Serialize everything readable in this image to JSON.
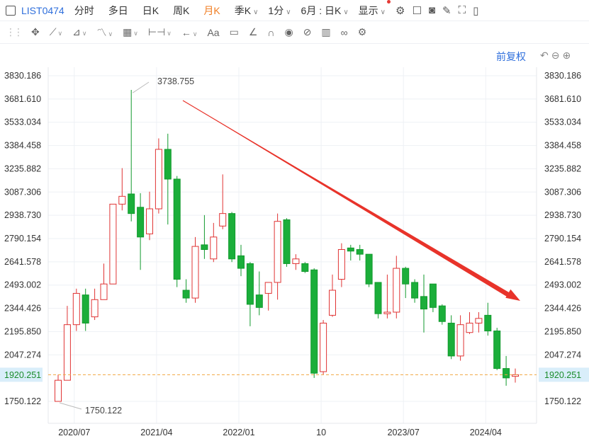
{
  "toolbar": {
    "symbol": "LIST0474",
    "periods": [
      "分时",
      "多日",
      "日K",
      "周K",
      "月K"
    ],
    "active_period": "月K",
    "season_label": "季K",
    "minute_label": "1分",
    "month_day_label": "6月 : 日K",
    "display_label": "显示",
    "icons": [
      "settings-gear-icon",
      "color-square-icon",
      "camera-icon",
      "pen-icon",
      "fullscreen-icon",
      "panel-icon"
    ]
  },
  "drawing_toolbar": {
    "tools": [
      "move-icon",
      "line-icon",
      "channel-icon",
      "wave-icon",
      "fib-icon",
      "measure-icon",
      "arrow-left-icon",
      "text-icon",
      "comment-icon",
      "ruler-icon",
      "magnet-icon",
      "eye-icon",
      "hide-icon",
      "trash-icon",
      "link-icon",
      "gear-icon"
    ],
    "text_tool_label": "Aa"
  },
  "adjust_label": "前复权",
  "colors": {
    "up": "#e03434",
    "down": "#129a2d",
    "down_fill": "#1bae3a",
    "arrow": "#e8332a",
    "price_line": "#f0a640",
    "price_box": "#d9eefa",
    "price_text": "#1a8c2a"
  },
  "chart_data": {
    "type": "candlestick",
    "y_ticks": [
      "3830.186",
      "3681.610",
      "3533.034",
      "3384.458",
      "3235.882",
      "3087.306",
      "2938.730",
      "2790.154",
      "2641.578",
      "2493.002",
      "2344.426",
      "2195.850",
      "2047.274",
      "1750.122"
    ],
    "y_range": [
      1652,
      3900
    ],
    "x_labels": [
      {
        "label": "2020/07",
        "index": 2
      },
      {
        "label": "2021/04",
        "index": 11
      },
      {
        "label": "2022/01",
        "index": 20
      },
      {
        "label": "10",
        "index": 29
      },
      {
        "label": "2023/07",
        "index": 38
      },
      {
        "label": "2024/04",
        "index": 47
      }
    ],
    "current_price": "1920.251",
    "max_label": "3738.755",
    "min_label": "1750.122",
    "candles": [
      {
        "o": 1750,
        "h": 1920,
        "l": 1750,
        "c": 1885
      },
      {
        "o": 1885,
        "h": 2360,
        "l": 1885,
        "c": 2240
      },
      {
        "o": 2240,
        "h": 2470,
        "l": 2200,
        "c": 2440
      },
      {
        "o": 2430,
        "h": 2470,
        "l": 2200,
        "c": 2250
      },
      {
        "o": 2290,
        "h": 2470,
        "l": 2270,
        "c": 2400
      },
      {
        "o": 2400,
        "h": 2630,
        "l": 2400,
        "c": 2500
      },
      {
        "o": 2500,
        "h": 3000,
        "l": 2500,
        "c": 3010
      },
      {
        "o": 3010,
        "h": 3240,
        "l": 2970,
        "c": 3060
      },
      {
        "o": 3075,
        "h": 3740,
        "l": 2900,
        "c": 2950
      },
      {
        "o": 2990,
        "h": 3080,
        "l": 2590,
        "c": 2800
      },
      {
        "o": 2820,
        "h": 3090,
        "l": 2780,
        "c": 2980
      },
      {
        "o": 2980,
        "h": 3430,
        "l": 2950,
        "c": 3360
      },
      {
        "o": 3360,
        "h": 3460,
        "l": 2880,
        "c": 3170
      },
      {
        "o": 3170,
        "h": 3190,
        "l": 2480,
        "c": 2530
      },
      {
        "o": 2460,
        "h": 2530,
        "l": 2380,
        "c": 2410
      },
      {
        "o": 2410,
        "h": 2800,
        "l": 2380,
        "c": 2740
      },
      {
        "o": 2750,
        "h": 2940,
        "l": 2660,
        "c": 2720
      },
      {
        "o": 2660,
        "h": 2890,
        "l": 2640,
        "c": 2800
      },
      {
        "o": 2870,
        "h": 3200,
        "l": 2850,
        "c": 2950
      },
      {
        "o": 2950,
        "h": 2960,
        "l": 2640,
        "c": 2660
      },
      {
        "o": 2680,
        "h": 2750,
        "l": 2550,
        "c": 2600
      },
      {
        "o": 2630,
        "h": 2640,
        "l": 2230,
        "c": 2370
      },
      {
        "o": 2430,
        "h": 2580,
        "l": 2300,
        "c": 2350
      },
      {
        "o": 2440,
        "h": 2510,
        "l": 2330,
        "c": 2510
      },
      {
        "o": 2510,
        "h": 2950,
        "l": 2400,
        "c": 2900
      },
      {
        "o": 2910,
        "h": 2920,
        "l": 2610,
        "c": 2630
      },
      {
        "o": 2630,
        "h": 2690,
        "l": 2590,
        "c": 2660
      },
      {
        "o": 2630,
        "h": 2640,
        "l": 2570,
        "c": 2580
      },
      {
        "o": 2590,
        "h": 2600,
        "l": 1900,
        "c": 1930
      },
      {
        "o": 1940,
        "h": 2270,
        "l": 1920,
        "c": 2250
      },
      {
        "o": 2300,
        "h": 2560,
        "l": 2290,
        "c": 2460
      },
      {
        "o": 2530,
        "h": 2760,
        "l": 2480,
        "c": 2720
      },
      {
        "o": 2730,
        "h": 2750,
        "l": 2650,
        "c": 2710
      },
      {
        "o": 2720,
        "h": 2750,
        "l": 2650,
        "c": 2690
      },
      {
        "o": 2690,
        "h": 2690,
        "l": 2480,
        "c": 2500
      },
      {
        "o": 2510,
        "h": 2510,
        "l": 2280,
        "c": 2310
      },
      {
        "o": 2310,
        "h": 2560,
        "l": 2280,
        "c": 2320
      },
      {
        "o": 2320,
        "h": 2680,
        "l": 2280,
        "c": 2600
      },
      {
        "o": 2600,
        "h": 2610,
        "l": 2410,
        "c": 2500
      },
      {
        "o": 2510,
        "h": 2530,
        "l": 2380,
        "c": 2410
      },
      {
        "o": 2420,
        "h": 2560,
        "l": 2190,
        "c": 2340
      },
      {
        "o": 2500,
        "h": 2500,
        "l": 2320,
        "c": 2350
      },
      {
        "o": 2360,
        "h": 2370,
        "l": 2240,
        "c": 2260
      },
      {
        "o": 2250,
        "h": 2300,
        "l": 2020,
        "c": 2040
      },
      {
        "o": 2040,
        "h": 2300,
        "l": 2010,
        "c": 2240
      },
      {
        "o": 2190,
        "h": 2320,
        "l": 2180,
        "c": 2250
      },
      {
        "o": 2250,
        "h": 2320,
        "l": 2190,
        "c": 2280
      },
      {
        "o": 2300,
        "h": 2380,
        "l": 2170,
        "c": 2200
      },
      {
        "o": 2200,
        "h": 2220,
        "l": 1950,
        "c": 1960
      },
      {
        "o": 1960,
        "h": 2040,
        "l": 1850,
        "c": 1900
      },
      {
        "o": 1910,
        "h": 1960,
        "l": 1870,
        "c": 1920
      }
    ]
  }
}
